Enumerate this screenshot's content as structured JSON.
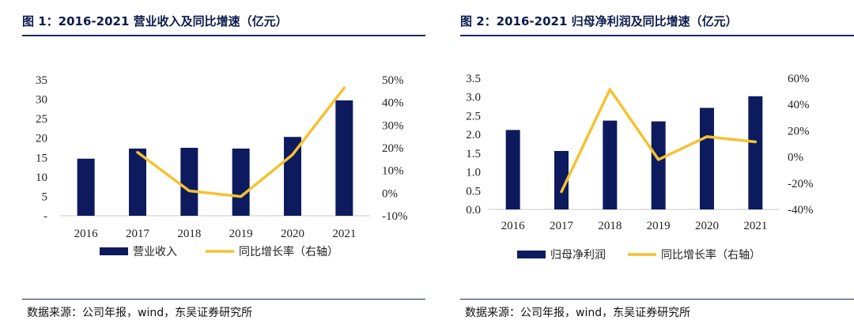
{
  "colors": {
    "bar": "#0d1b5e",
    "line": "#f4c232",
    "rule": "#1a2a5e"
  },
  "charts": [
    {
      "title": "图 1：2016-2021 营业收入及同比增速（亿元）",
      "source": "数据来源：公司年报，wind，东吴证券研究所"
    },
    {
      "title": "图 2：2016-2021 归母净利润及同比增速（亿元）",
      "source": "数据来源：公司年报，wind，东吴证券研究所"
    }
  ],
  "chart_data": [
    {
      "type": "bar",
      "categories": [
        "2016",
        "2017",
        "2018",
        "2019",
        "2020",
        "2021"
      ],
      "series": [
        {
          "name": "营业收入",
          "type": "bar",
          "axis": "left",
          "values": [
            14.7,
            17.3,
            17.5,
            17.3,
            20.3,
            29.7
          ]
        },
        {
          "name": "同比增长率（右轴）",
          "type": "line",
          "axis": "right",
          "values": [
            null,
            18.0,
            1.0,
            -1.5,
            17.0,
            46.5
          ]
        }
      ],
      "y_left": {
        "range": [
          0,
          35
        ],
        "ticks": [
          35,
          30,
          25,
          20,
          15,
          10,
          5,
          0
        ],
        "tick_labels": [
          "35",
          "30",
          "25",
          "20",
          "15",
          "10",
          "5",
          "-"
        ]
      },
      "y_right": {
        "range": [
          -10,
          50
        ],
        "ticks": [
          50,
          40,
          30,
          20,
          10,
          0,
          -10
        ],
        "tick_labels": [
          "50%",
          "40%",
          "30%",
          "20%",
          "10%",
          "0%",
          "-10%"
        ]
      },
      "grid": false,
      "legend": "bottom"
    },
    {
      "type": "bar",
      "categories": [
        "2016",
        "2017",
        "2018",
        "2019",
        "2020",
        "2021"
      ],
      "series": [
        {
          "name": "归母净利润",
          "type": "bar",
          "axis": "left",
          "values": [
            2.12,
            1.56,
            2.37,
            2.35,
            2.71,
            3.02
          ]
        },
        {
          "name": "同比增长率（右轴）",
          "type": "line",
          "axis": "right",
          "values": [
            null,
            -26.5,
            51.5,
            -2.0,
            15.5,
            11.5
          ]
        }
      ],
      "y_left": {
        "range": [
          0,
          3.5
        ],
        "ticks": [
          3.5,
          3.0,
          2.5,
          2.0,
          1.5,
          1.0,
          0.5,
          0.0
        ],
        "tick_labels": [
          "3.5",
          "3.0",
          "2.5",
          "2.0",
          "1.5",
          "1.0",
          "0.5",
          "0.0"
        ]
      },
      "y_right": {
        "range": [
          -40,
          60
        ],
        "ticks": [
          60,
          40,
          20,
          0,
          -20,
          -40
        ],
        "tick_labels": [
          "60%",
          "40%",
          "20%",
          "0%",
          "-20%",
          "-40%"
        ]
      },
      "grid": false,
      "legend": "bottom"
    }
  ]
}
